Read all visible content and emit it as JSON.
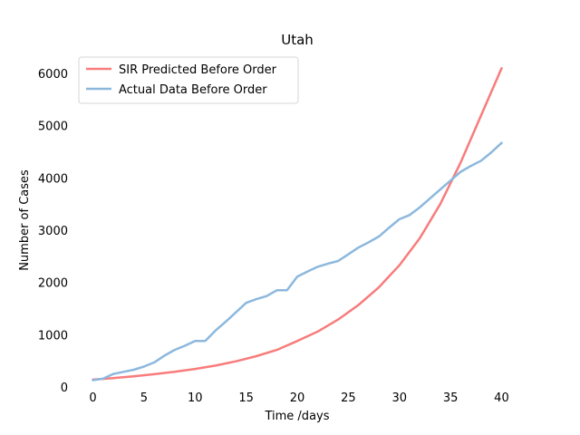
{
  "chart_data": {
    "type": "line",
    "title": "Utah",
    "xlabel": "Time /days",
    "ylabel": "Number of Cases",
    "xlim": [
      -2,
      42
    ],
    "ylim": [
      0,
      6400
    ],
    "x_ticks": [
      0,
      5,
      10,
      15,
      20,
      25,
      30,
      35,
      40
    ],
    "y_ticks": [
      0,
      1000,
      2000,
      3000,
      4000,
      5000,
      6000
    ],
    "grid": false,
    "legend_position": "top-left",
    "series": [
      {
        "name": "SIR Predicted Before Order",
        "color": "#f87c7c",
        "x": [
          0,
          2,
          4,
          6,
          8,
          10,
          12,
          14,
          16,
          18,
          20,
          22,
          24,
          26,
          28,
          30,
          32,
          34,
          36,
          38,
          40
        ],
        "y": [
          140,
          170,
          205,
          245,
          290,
          345,
          410,
          490,
          590,
          710,
          880,
          1060,
          1290,
          1570,
          1910,
          2330,
          2850,
          3500,
          4300,
          5200,
          6100
        ]
      },
      {
        "name": "Actual Data Before Order",
        "color": "#8cb8dd",
        "x": [
          0,
          1,
          2,
          3,
          4,
          5,
          6,
          7,
          8,
          9,
          10,
          11,
          12,
          13,
          14,
          15,
          16,
          17,
          18,
          19,
          20,
          21,
          22,
          23,
          24,
          25,
          26,
          27,
          28,
          29,
          30,
          31,
          32,
          33,
          34,
          35,
          36,
          37,
          38,
          39,
          40
        ],
        "y": [
          130,
          160,
          250,
          290,
          330,
          390,
          470,
          600,
          710,
          790,
          880,
          880,
          1080,
          1250,
          1430,
          1610,
          1680,
          1740,
          1850,
          1850,
          2110,
          2210,
          2300,
          2360,
          2410,
          2540,
          2670,
          2770,
          2880,
          3050,
          3210,
          3290,
          3440,
          3610,
          3780,
          3950,
          4120,
          4230,
          4330,
          4490,
          4670
        ]
      }
    ]
  }
}
